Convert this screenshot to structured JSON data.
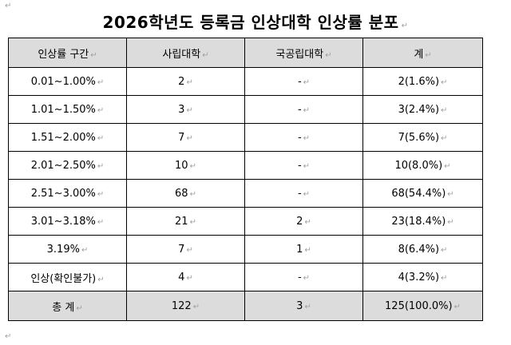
{
  "marks": {
    "paragraph": "↵",
    "return": "↵"
  },
  "title": "2026학년도 등록금 인상대학 인상률 분포",
  "table": {
    "headers": [
      "인상률 구간",
      "사립대학",
      "국공립대학",
      "계"
    ],
    "rows": [
      {
        "range": "0.01~1.00%",
        "private": "2",
        "public": "-",
        "total": "2(1.6%)"
      },
      {
        "range": "1.01~1.50%",
        "private": "3",
        "public": "-",
        "total": "3(2.4%)"
      },
      {
        "range": "1.51~2.00%",
        "private": "7",
        "public": "-",
        "total": "7(5.6%)"
      },
      {
        "range": "2.01~2.50%",
        "private": "10",
        "public": "-",
        "total": "10(8.0%)"
      },
      {
        "range": "2.51~3.00%",
        "private": "68",
        "public": "-",
        "total": "68(54.4%)"
      },
      {
        "range": "3.01~3.18%",
        "private": "21",
        "public": "2",
        "total": "23(18.4%)"
      },
      {
        "range": "3.19%",
        "private": "7",
        "public": "1",
        "total": "8(6.4%)"
      },
      {
        "range": "인상(확인불가)",
        "private": "4",
        "public": "-",
        "total": "4(3.2%)"
      }
    ],
    "total_row": {
      "label": "총 계",
      "private": "122",
      "public": "3",
      "total": "125(100.0%)"
    }
  }
}
